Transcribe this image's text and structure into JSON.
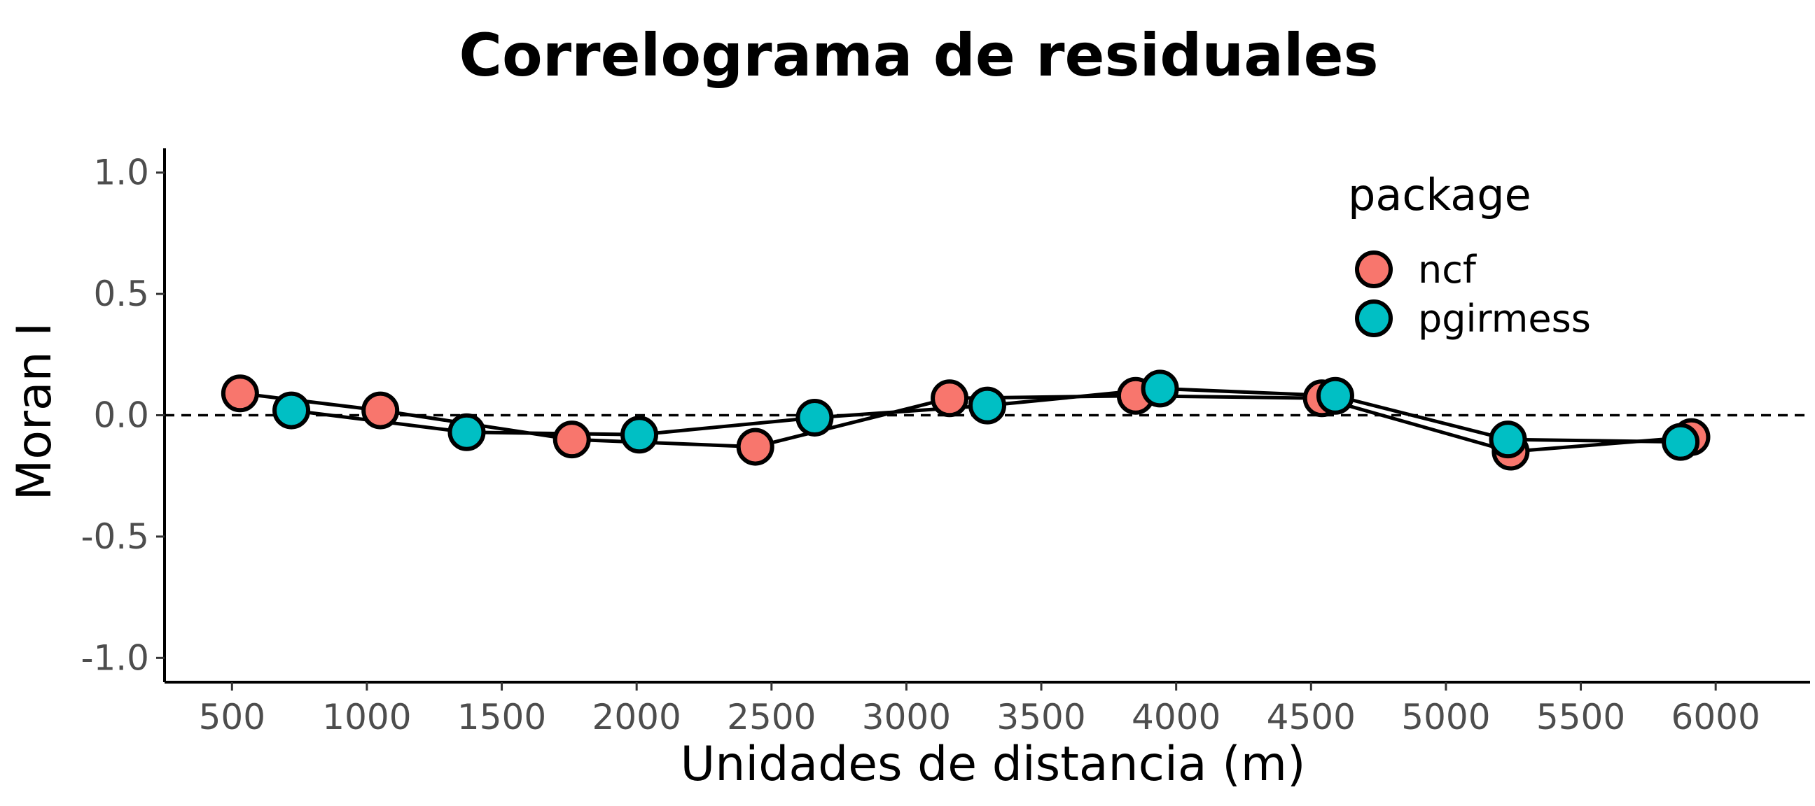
{
  "chart_data": {
    "type": "line",
    "title": "Correlograma de residuales",
    "xlabel": "Unidades de distancia (m)",
    "ylabel": "Moran I",
    "xlim": [
      250,
      6350
    ],
    "ylim": [
      -1.1,
      1.1
    ],
    "x_ticks": [
      500,
      1000,
      1500,
      2000,
      2500,
      3000,
      3500,
      4000,
      4500,
      5000,
      5500,
      6000
    ],
    "y_ticks": [
      1.0,
      0.5,
      0.0,
      -0.5,
      -1.0
    ],
    "x_tick_labels": [
      "500",
      "1000",
      "1500",
      "2000",
      "2500",
      "3000",
      "3500",
      "4000",
      "4500",
      "5000",
      "5500",
      "6000"
    ],
    "y_tick_labels": [
      "1.0",
      "0.5",
      "0.0",
      "-0.5",
      "-1.0"
    ],
    "reference_line": {
      "y": 0,
      "style": "dashed"
    },
    "legend": {
      "title": "package",
      "position": "top-right"
    },
    "series": [
      {
        "name": "ncf",
        "color": "#F8766D",
        "x": [
          530,
          1050,
          1760,
          2440,
          3160,
          3850,
          4540,
          5240,
          5910
        ],
        "y": [
          0.09,
          0.02,
          -0.1,
          -0.13,
          0.07,
          0.08,
          0.07,
          -0.15,
          -0.09
        ]
      },
      {
        "name": "pgirmess",
        "color": "#00BFC4",
        "x": [
          720,
          1370,
          2010,
          2660,
          3300,
          3940,
          4590,
          5230,
          5870
        ],
        "y": [
          0.02,
          -0.07,
          -0.08,
          -0.01,
          0.04,
          0.11,
          0.08,
          -0.1,
          -0.11
        ]
      }
    ]
  }
}
